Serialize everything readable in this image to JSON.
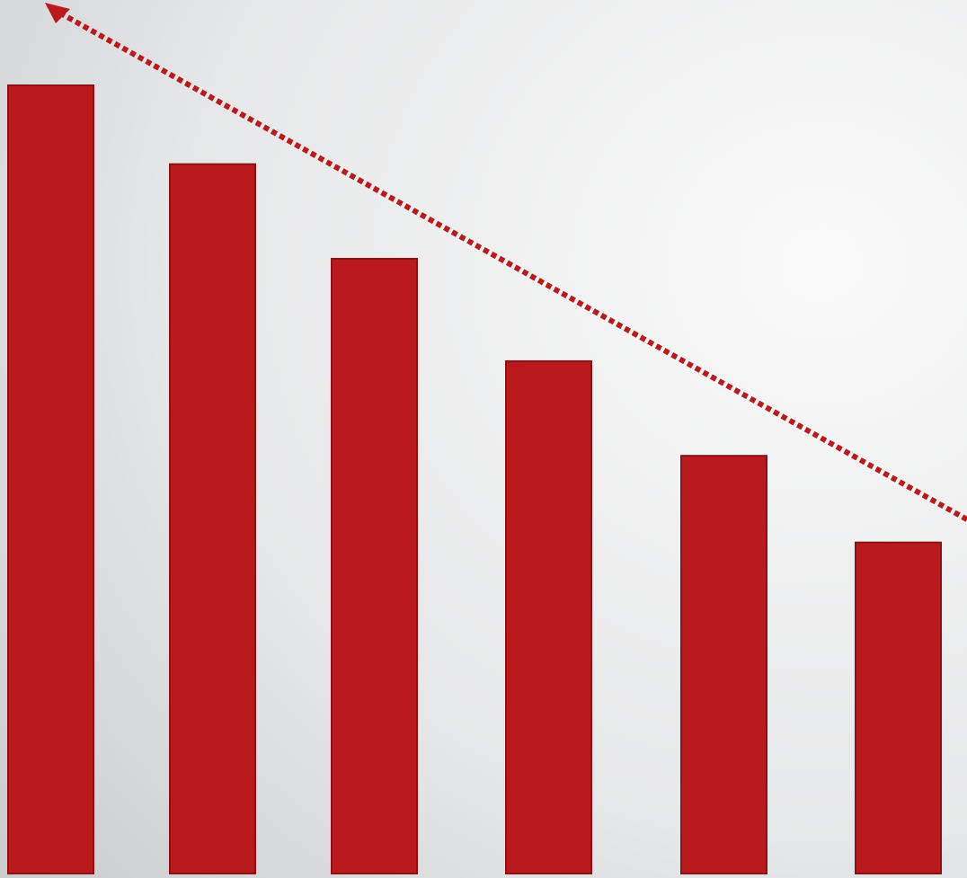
{
  "chart_data": {
    "type": "bar",
    "categories": [
      null,
      null,
      null,
      null,
      null,
      null
    ],
    "values": [
      100,
      90,
      78,
      65,
      53,
      42
    ],
    "color": "#bb1a1c",
    "ylim": [
      0,
      100
    ],
    "grid": false
  }
}
